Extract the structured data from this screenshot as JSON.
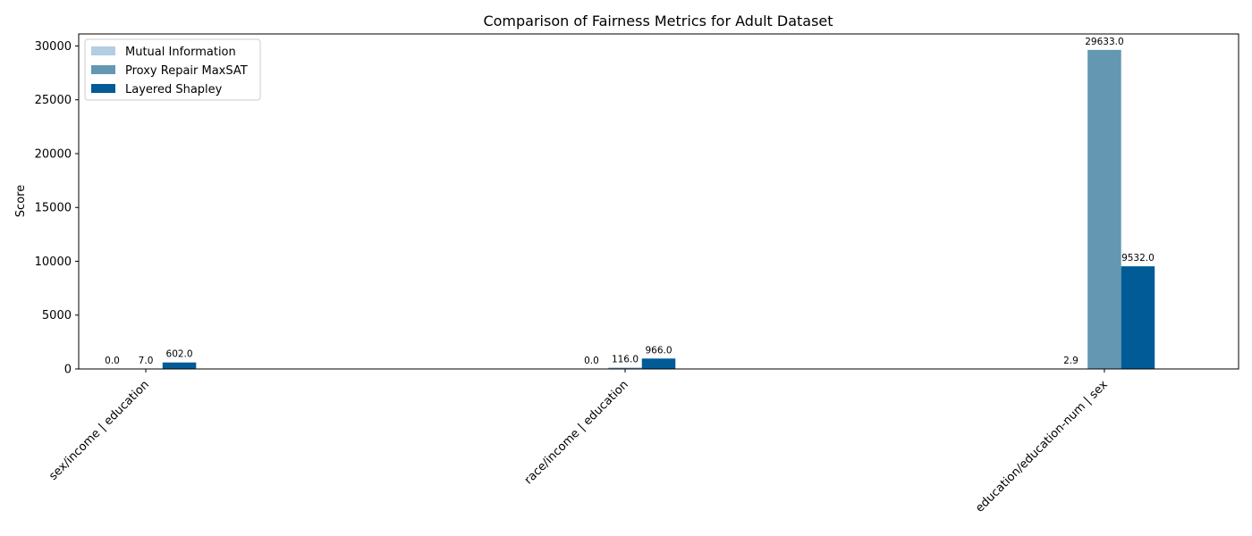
{
  "chart_data": {
    "type": "bar",
    "title": "Comparison of Fairness Metrics for Adult Dataset",
    "xlabel": "",
    "ylabel": "Score",
    "ylim": [
      0,
      31116
    ],
    "yticks": [
      0,
      5000,
      10000,
      15000,
      20000,
      25000,
      30000
    ],
    "categories": [
      "sex/income | education",
      "race/income | education",
      "education/education-num | sex"
    ],
    "series": [
      {
        "name": "Mutual Information",
        "color": "#b3cde3",
        "values": [
          0.0,
          0.0,
          2.9
        ],
        "labels": [
          "0.0",
          "0.0",
          "2.9"
        ]
      },
      {
        "name": "Proxy Repair MaxSAT",
        "color": "#6497b1",
        "values": [
          7.0,
          116.0,
          29633.0
        ],
        "labels": [
          "7.0",
          "116.0",
          "29633.0"
        ]
      },
      {
        "name": "Layered Shapley",
        "color": "#005b96",
        "values": [
          602.0,
          966.0,
          9532.0
        ],
        "labels": [
          "602.0",
          "966.0",
          "9532.0"
        ]
      }
    ],
    "legend": "top-left",
    "grid": false
  }
}
